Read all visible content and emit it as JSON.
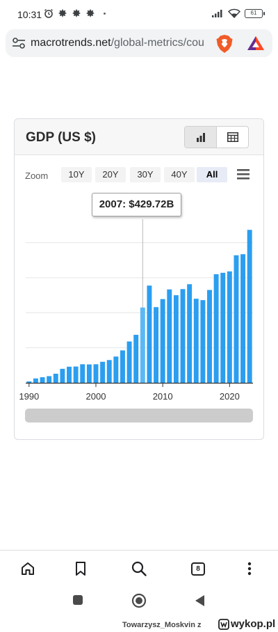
{
  "status_bar": {
    "time": "10:31",
    "battery": "61",
    "icons": [
      "alarm-icon",
      "notification-icon",
      "notification-icon",
      "notification-icon",
      "signal-icon",
      "wifi-icon",
      "battery-icon"
    ]
  },
  "address_bar": {
    "url_host": "macrotrends.net",
    "url_path": "/global-metrics/cou"
  },
  "card": {
    "title": "GDP (US $)",
    "zoom_label": "Zoom",
    "zoom_options": [
      "10Y",
      "20Y",
      "30Y",
      "40Y",
      "All"
    ],
    "zoom_selected": "All",
    "tooltip": "2007: $429.72B"
  },
  "chart_data": {
    "type": "bar",
    "x": [
      1990,
      1991,
      1992,
      1993,
      1994,
      1995,
      1996,
      1997,
      1998,
      1999,
      2000,
      2001,
      2002,
      2003,
      2004,
      2005,
      2006,
      2007,
      2008,
      2009,
      2010,
      2011,
      2012,
      2013,
      2014,
      2015,
      2016,
      2017,
      2018,
      2019,
      2020,
      2021,
      2022,
      2023
    ],
    "values_billion_usd": [
      8,
      25,
      32,
      38,
      52,
      80,
      92,
      93,
      106,
      105,
      106,
      120,
      130,
      150,
      185,
      236,
      274,
      429.72,
      555,
      432,
      478,
      533,
      500,
      535,
      563,
      480,
      472,
      530,
      620,
      628,
      636,
      728,
      734,
      873
    ],
    "x_tick_labels": [
      "1990",
      "2000",
      "2010",
      "2020"
    ],
    "highlighted_year": 2007,
    "grid": "horizontal",
    "bar_color": "#2b9ef0",
    "highlight_color": "#5bb8f5"
  },
  "bottom_nav": {
    "tab_count": "8",
    "items": [
      "home-icon",
      "bookmark-icon",
      "search-icon",
      "tabs-icon",
      "more-icon"
    ]
  },
  "watermark": {
    "username": "Towarzysz_Moskvin",
    "separator": "z",
    "site": "wykop.pl"
  }
}
